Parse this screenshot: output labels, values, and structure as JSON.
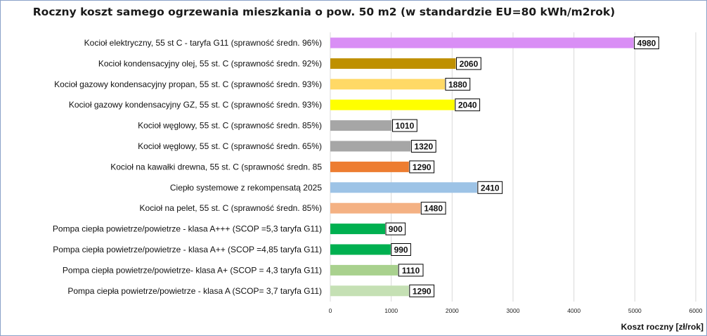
{
  "chart_data": {
    "type": "bar",
    "orientation": "horizontal",
    "title": "Roczny koszt samego ogrzewania mieszkania o pow. 50 m2 (w standardzie  EU=80 kWh/m2rok)",
    "xlabel": "Koszt roczny [zł/rok]",
    "ylabel": "",
    "xlim": [
      0,
      6000
    ],
    "xticks": [
      "0",
      "1000",
      "2000",
      "3000",
      "4000",
      "5000",
      "6000"
    ],
    "grid": true,
    "legend": "none",
    "categories": [
      "Kocioł  elektryczny, 55 st C -  taryfa G11 (sprawność średn. 96%)",
      "Kocioł  kondensacyjny olej, 55 st. C (sprawność średn. 92%)",
      "Kocioł gazowy kondensacyjny propan, 55 st. C (sprawność średn. 93%)",
      "Kocioł gazowy kondensacyjny GZ, 55 st. C (sprawność średn. 93%)",
      "Kocioł węglowy,  55 st. C (sprawność średn. 85%)",
      "Kocioł węglowy, 55 st. C (sprawność średn. 65%)",
      "Kocioł na kawałki drewna, 55 st. C (sprawność średn. 85",
      "Ciepło systemowe z rekompensatą 2025",
      "Kocioł na pelet, 55 st. C (sprawność średn. 85%)",
      "Pompa ciepła powietrze/powietrze -  klasa A+++ (SCOP =5,3 taryfa G11)",
      "Pompa ciepła powietrze/powietrze - klasa A++ (SCOP =4,85 taryfa G11)",
      "Pompa ciepła powietrze/powietrze-  klasa A+ (SCOP = 4,3 taryfa G11)",
      "Pompa ciepła powietrze/powietrze - klasa A (SCOP= 3,7 taryfa G11)"
    ],
    "values": [
      4980,
      2060,
      1880,
      2040,
      1010,
      1320,
      1290,
      2410,
      1480,
      900,
      990,
      1110,
      1290
    ],
    "colors": [
      "#d98ef5",
      "#bf9000",
      "#ffd966",
      "#ffff00",
      "#a6a6a6",
      "#a6a6a6",
      "#ed7d31",
      "#9dc3e6",
      "#f4b183",
      "#00b050",
      "#00b050",
      "#a9d18e",
      "#c5e0b4"
    ]
  }
}
